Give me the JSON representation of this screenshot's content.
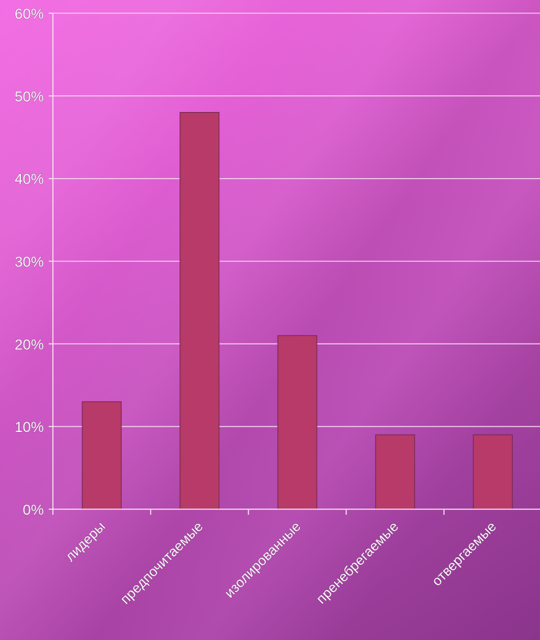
{
  "chart_data": {
    "type": "bar",
    "categories": [
      "лидеры",
      "предпочитаемые",
      "изолированные",
      "пренебрегаемые",
      "отвергаемые"
    ],
    "values": [
      13,
      48,
      21,
      9,
      9
    ],
    "ylim": [
      0,
      60
    ],
    "y_ticks": [
      0,
      10,
      20,
      30,
      40,
      50,
      60
    ],
    "y_tick_suffix": "%",
    "grid": true,
    "legend": "none",
    "colors": {
      "bar": "#b83a68",
      "grid": "#f3d9ef",
      "text": "#ffffff"
    }
  }
}
